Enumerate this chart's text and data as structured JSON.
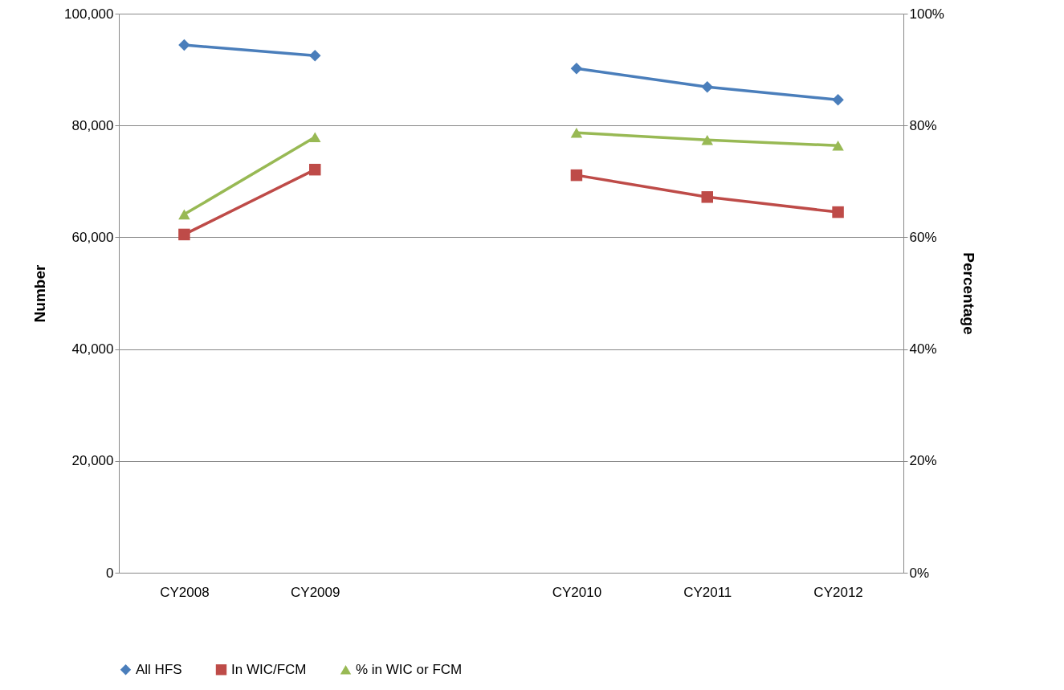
{
  "chart_data": {
    "type": "line",
    "ylabel": "Number",
    "y2label": "Percentage",
    "categories": [
      "CY2008",
      "CY2009",
      null,
      "CY2010",
      "CY2011",
      "CY2012"
    ],
    "series": [
      {
        "name": "All HFS",
        "color": "#4a7ebb",
        "marker": "diamond",
        "values": [
          94400,
          92500,
          null,
          90200,
          86900,
          84600
        ]
      },
      {
        "name": "In WIC/FCM",
        "color": "#be4b48",
        "marker": "square",
        "values": [
          60500,
          72100,
          null,
          71100,
          67200,
          64500
        ]
      },
      {
        "name": "% in WIC or FCM",
        "color": "#98b954",
        "marker": "triangle",
        "axis": "y2",
        "values": [
          64.1,
          77.9,
          null,
          78.7,
          77.4,
          76.4
        ]
      }
    ],
    "ylim": [
      0,
      100000
    ],
    "yticks": [
      {
        "value": 0,
        "label": "0"
      },
      {
        "value": 20000,
        "label": "20,000"
      },
      {
        "value": 40000,
        "label": "40,000"
      },
      {
        "value": 60000,
        "label": "60,000"
      },
      {
        "value": 80000,
        "label": "80,000"
      },
      {
        "value": 100000,
        "label": "100,000"
      }
    ],
    "y2lim": [
      0,
      100
    ],
    "y2ticks": [
      {
        "value": 0,
        "label": "0%"
      },
      {
        "value": 20,
        "label": "20%"
      },
      {
        "value": 40,
        "label": "40%"
      },
      {
        "value": 60,
        "label": "60%"
      },
      {
        "value": 80,
        "label": "80%"
      },
      {
        "value": 100,
        "label": "100%"
      }
    ],
    "grid": "y",
    "legend": "bottom",
    "line_style": "solid"
  }
}
